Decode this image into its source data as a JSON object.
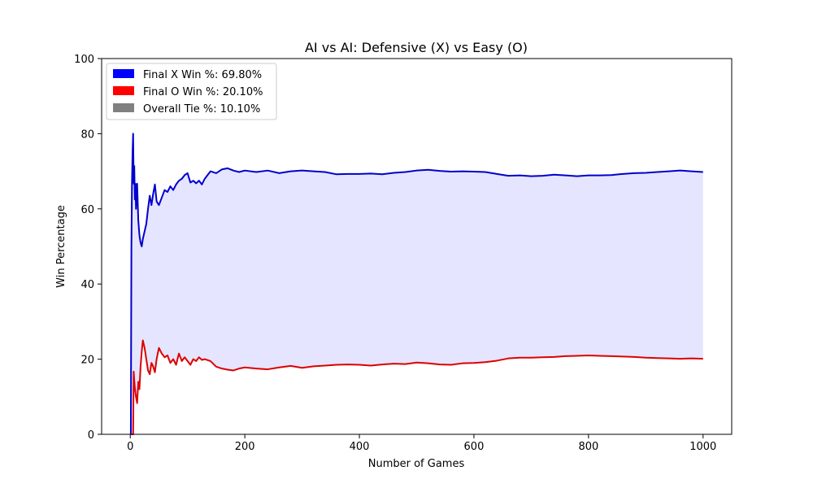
{
  "chart_data": {
    "type": "line",
    "title": "AI vs AI: Defensive (X) vs Easy (O)",
    "xlabel": "Number of Games",
    "ylabel": "Win Percentage",
    "xlim": [
      -50,
      1050
    ],
    "ylim": [
      0,
      100
    ],
    "xticks": [
      0,
      200,
      400,
      600,
      800,
      1000
    ],
    "yticks": [
      0,
      20,
      40,
      60,
      80,
      100
    ],
    "grid": false,
    "legend": {
      "placement": "top-left",
      "entries": [
        {
          "label": "Final X Win %: 69.80%",
          "color": "#0000ff"
        },
        {
          "label": "Final O Win %: 20.10%",
          "color": "#ff0000"
        },
        {
          "label": "Overall Tie %: 10.10%",
          "color": "#808080"
        }
      ]
    },
    "fill_between": {
      "color": "#0000ff",
      "alpha": 0.1
    },
    "series": [
      {
        "color": "#0000cc",
        "x": [
          1,
          2,
          3,
          4,
          5,
          6,
          7,
          8,
          9,
          10,
          11,
          12,
          14,
          16,
          18,
          20,
          22,
          25,
          28,
          31,
          34,
          37,
          40,
          43,
          46,
          50,
          55,
          60,
          65,
          70,
          75,
          80,
          85,
          90,
          95,
          100,
          105,
          110,
          115,
          120,
          125,
          130,
          140,
          150,
          160,
          170,
          180,
          190,
          200,
          220,
          240,
          260,
          280,
          300,
          320,
          340,
          360,
          380,
          400,
          420,
          440,
          460,
          480,
          500,
          520,
          540,
          560,
          580,
          600,
          620,
          640,
          660,
          680,
          700,
          720,
          740,
          760,
          780,
          800,
          820,
          840,
          860,
          880,
          900,
          920,
          940,
          960,
          980,
          1000
        ],
        "values": [
          0,
          50,
          66.7,
          75,
          80,
          66.7,
          71.4,
          62.5,
          66.7,
          60,
          63.6,
          66.7,
          57,
          53,
          51,
          50,
          52,
          54,
          56,
          60,
          63.5,
          61,
          64,
          66.5,
          62,
          61,
          63,
          65,
          64.5,
          66,
          65,
          66.5,
          67.5,
          68,
          69,
          69.5,
          67,
          67.5,
          66.8,
          67.5,
          66.5,
          68,
          70,
          69.5,
          70.5,
          70.8,
          70.2,
          69.8,
          70.2,
          69.8,
          70.2,
          69.5,
          70,
          70.2,
          70,
          69.8,
          69.2,
          69.3,
          69.3,
          69.4,
          69.2,
          69.6,
          69.8,
          70.2,
          70.4,
          70.1,
          69.9,
          70.0,
          69.9,
          69.8,
          69.3,
          68.8,
          68.9,
          68.7,
          68.8,
          69.1,
          68.9,
          68.7,
          68.9,
          68.9,
          69.0,
          69.3,
          69.5,
          69.6,
          69.8,
          70.0,
          70.2,
          70.0,
          69.8
        ]
      },
      {
        "color": "#dd0000",
        "x": [
          1,
          2,
          3,
          4,
          5,
          6,
          7,
          8,
          9,
          10,
          11,
          12,
          14,
          16,
          18,
          20,
          22,
          25,
          28,
          31,
          34,
          37,
          40,
          43,
          46,
          50,
          55,
          60,
          65,
          70,
          75,
          80,
          85,
          90,
          95,
          100,
          105,
          110,
          115,
          120,
          125,
          130,
          140,
          150,
          160,
          170,
          180,
          190,
          200,
          220,
          240,
          260,
          280,
          300,
          320,
          340,
          360,
          380,
          400,
          420,
          440,
          460,
          480,
          500,
          520,
          540,
          560,
          580,
          600,
          620,
          640,
          660,
          680,
          700,
          720,
          740,
          760,
          780,
          800,
          820,
          840,
          860,
          880,
          900,
          920,
          940,
          960,
          980,
          1000
        ],
        "values": [
          0,
          0,
          0,
          0,
          0,
          16.7,
          14.3,
          12.5,
          11.1,
          10,
          9.1,
          8.3,
          14,
          12,
          18,
          22,
          25,
          23,
          20,
          17,
          16,
          19,
          18,
          16.5,
          20,
          23,
          21.5,
          20.5,
          21,
          19,
          20,
          18.5,
          21.5,
          19.5,
          20.5,
          19.5,
          18.5,
          20,
          19.5,
          20.5,
          19.8,
          20,
          19.5,
          18,
          17.5,
          17.2,
          17,
          17.5,
          17.8,
          17.5,
          17.3,
          17.8,
          18.2,
          17.7,
          18.1,
          18.3,
          18.5,
          18.6,
          18.5,
          18.3,
          18.6,
          18.8,
          18.7,
          19.1,
          18.9,
          18.6,
          18.5,
          18.9,
          19.0,
          19.2,
          19.6,
          20.2,
          20.4,
          20.4,
          20.5,
          20.6,
          20.8,
          20.9,
          21.0,
          20.9,
          20.8,
          20.7,
          20.6,
          20.4,
          20.3,
          20.2,
          20.1,
          20.2,
          20.1
        ]
      }
    ]
  }
}
